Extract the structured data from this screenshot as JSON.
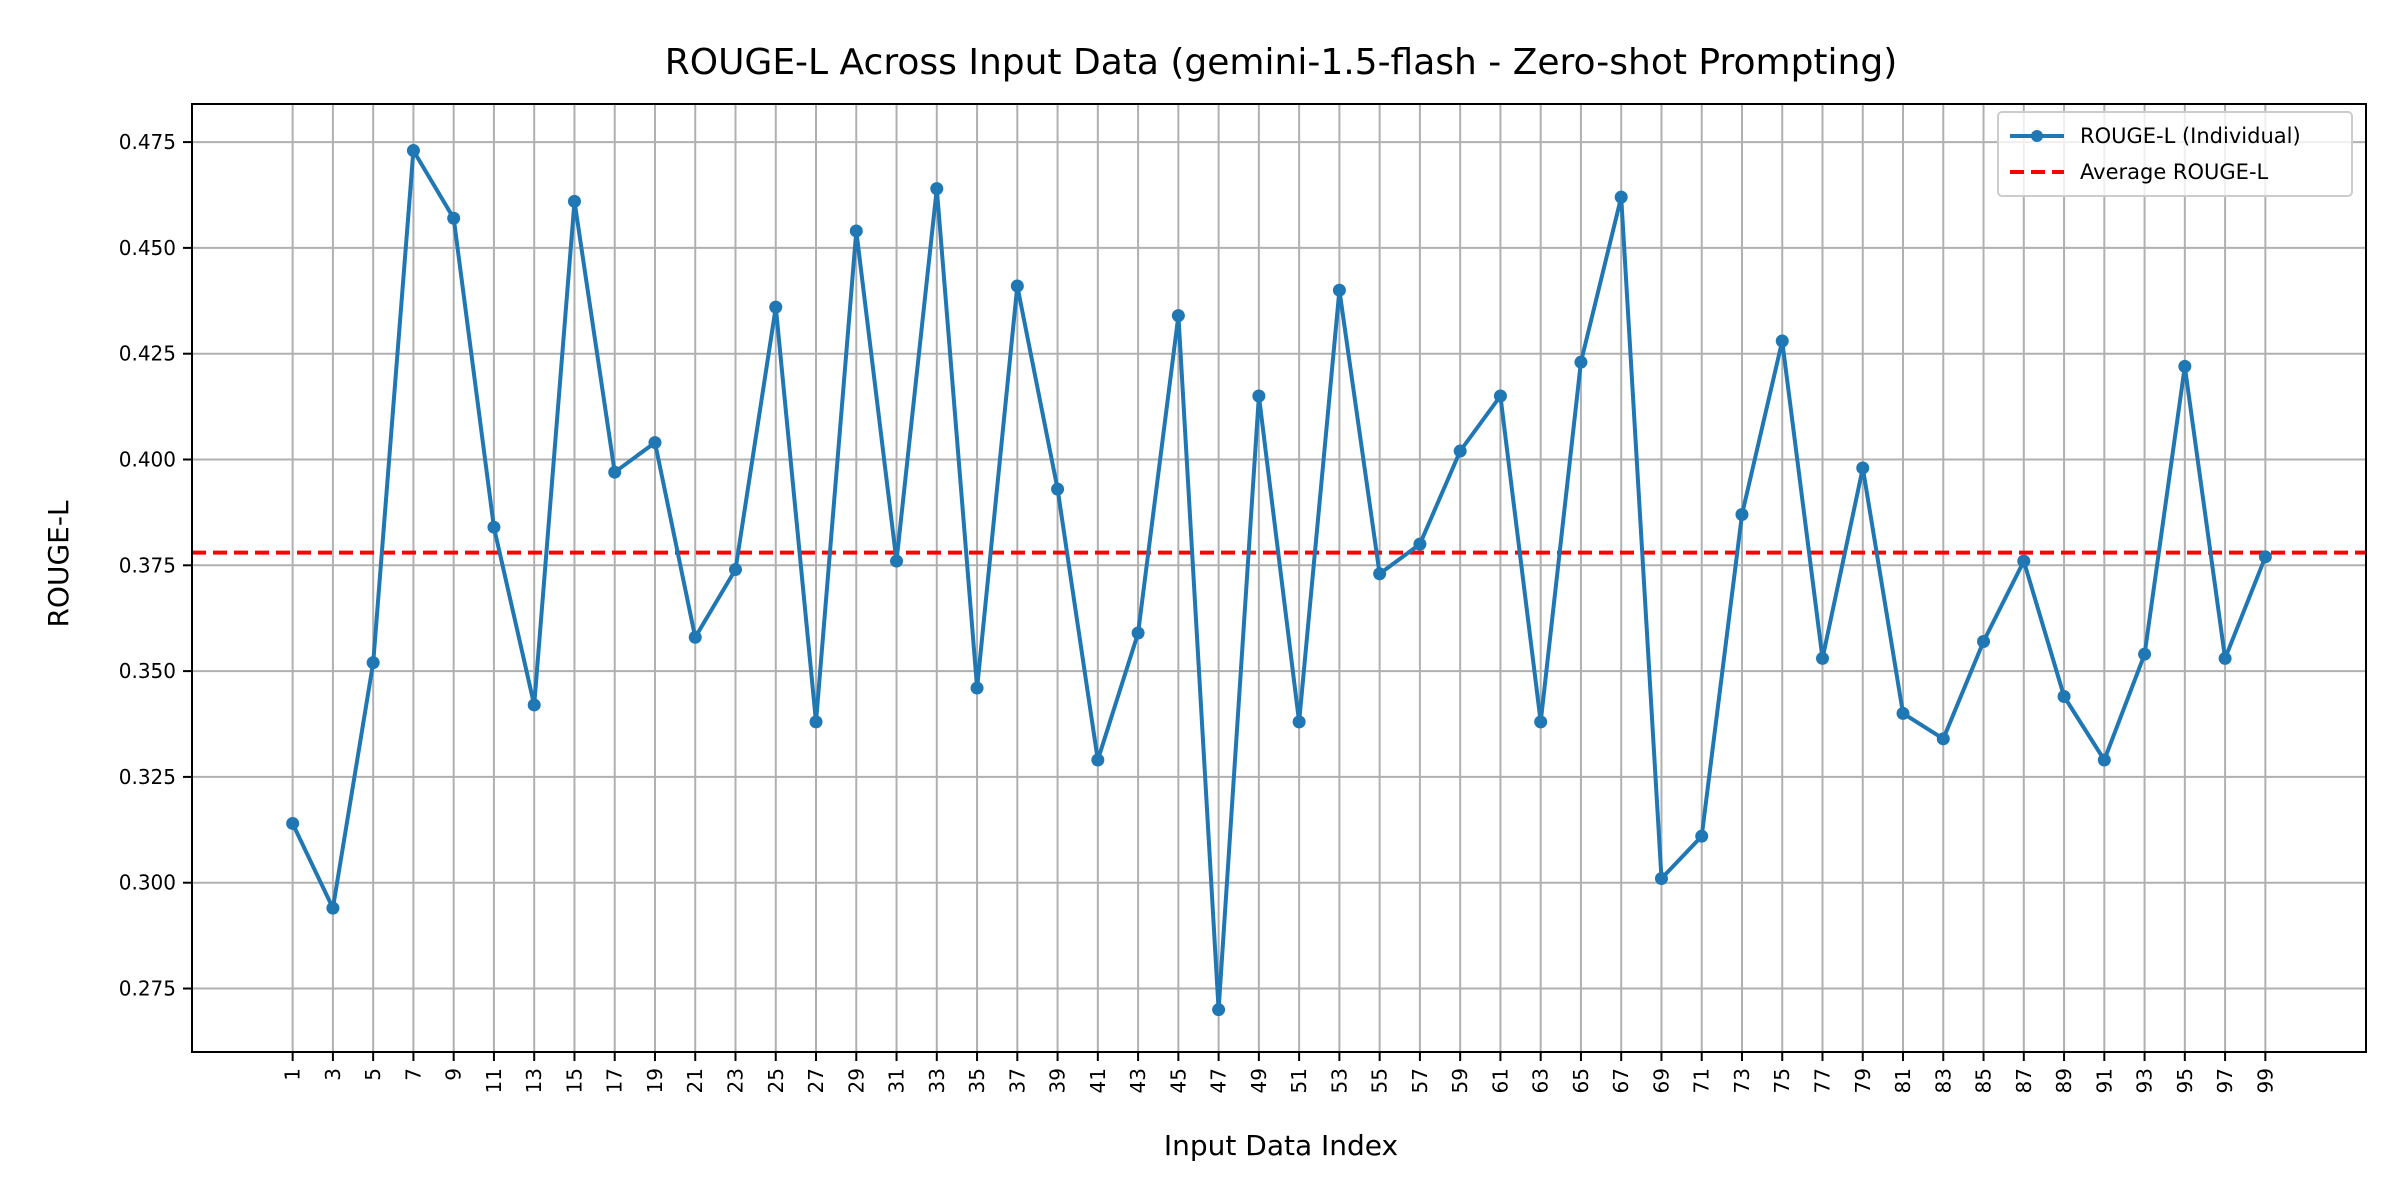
{
  "chart_data": {
    "type": "line",
    "title": "ROUGE-L Across Input Data (gemini-1.5-flash - Zero-shot Prompting)",
    "xlabel": "Input Data Index",
    "ylabel": "ROUGE-L",
    "xlim": [
      -4,
      104
    ],
    "ylim": [
      0.26,
      0.484
    ],
    "grid": true,
    "legend_position": "top-right",
    "x_ticks": [
      1,
      3,
      5,
      7,
      9,
      11,
      13,
      15,
      17,
      19,
      21,
      23,
      25,
      27,
      29,
      31,
      33,
      35,
      37,
      39,
      41,
      43,
      45,
      47,
      49,
      51,
      53,
      55,
      57,
      59,
      61,
      63,
      65,
      67,
      69,
      71,
      73,
      75,
      77,
      79,
      81,
      83,
      85,
      87,
      89,
      91,
      93,
      95,
      97,
      99
    ],
    "y_ticks": [
      "0.275",
      "0.300",
      "0.325",
      "0.350",
      "0.375",
      "0.400",
      "0.425",
      "0.450",
      "0.475"
    ],
    "x": [
      1,
      3,
      5,
      7,
      9,
      11,
      13,
      15,
      17,
      19,
      21,
      23,
      25,
      27,
      29,
      31,
      33,
      35,
      37,
      39,
      41,
      43,
      45,
      47,
      49,
      51,
      53,
      55,
      57,
      59,
      61,
      63,
      65,
      67,
      69,
      71,
      73,
      75,
      77,
      79,
      81,
      83,
      85,
      87,
      89,
      91,
      93,
      95,
      97,
      99
    ],
    "series": [
      {
        "name": "ROUGE-L (Individual)",
        "color": "#1f77b4",
        "style": "line-with-markers",
        "values": [
          0.314,
          0.294,
          0.352,
          0.473,
          0.457,
          0.384,
          0.342,
          0.461,
          0.397,
          0.404,
          0.358,
          0.374,
          0.436,
          0.338,
          0.454,
          0.376,
          0.464,
          0.346,
          0.441,
          0.393,
          0.329,
          0.359,
          0.434,
          0.27,
          0.415,
          0.338,
          0.44,
          0.373,
          0.38,
          0.402,
          0.415,
          0.338,
          0.423,
          0.462,
          0.301,
          0.311,
          0.387,
          0.428,
          0.353,
          0.398,
          0.34,
          0.334,
          0.357,
          0.376,
          0.344,
          0.329,
          0.354,
          0.422,
          0.353,
          0.377
        ]
      },
      {
        "name": "Average ROUGE-L",
        "color": "#ff0000",
        "style": "dashed-horizontal",
        "value": 0.378
      }
    ]
  }
}
